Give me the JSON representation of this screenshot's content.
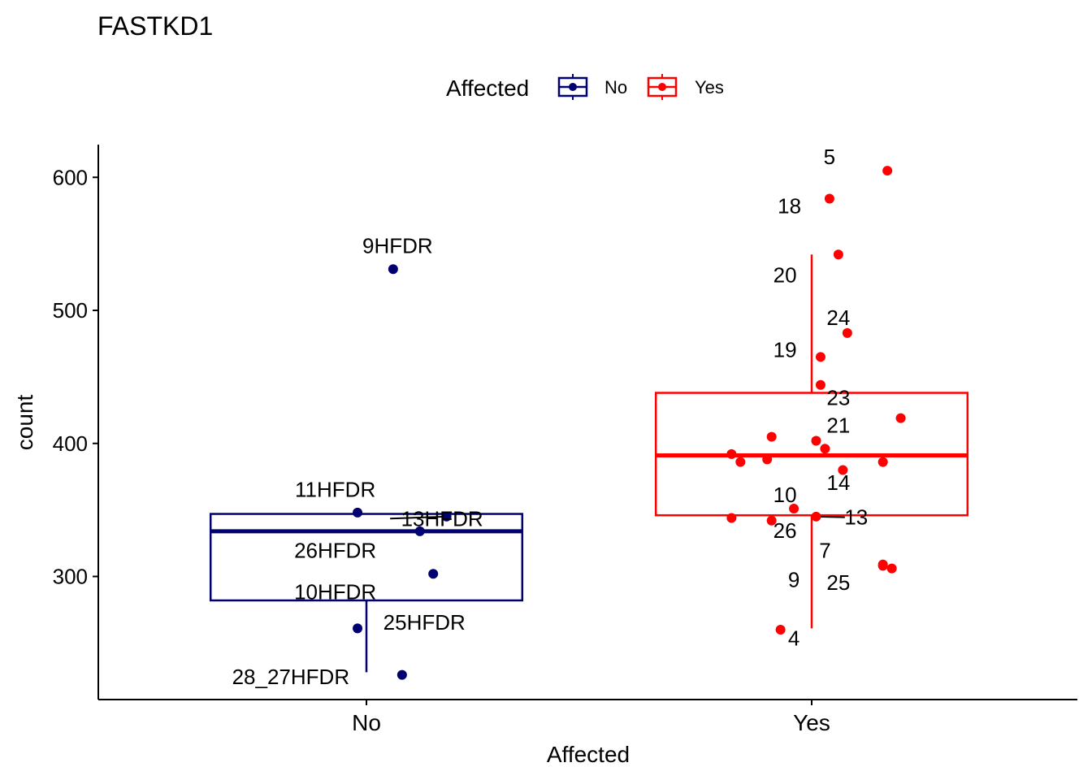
{
  "chart_data": {
    "type": "boxplot",
    "title": "FASTKD1",
    "xlabel": "Affected",
    "ylabel": "count",
    "ylim": [
      210,
      625
    ],
    "yticks": [
      300,
      400,
      500,
      600
    ],
    "categories": [
      "No",
      "Yes"
    ],
    "legend": {
      "title": "Affected",
      "position": "top",
      "entries": [
        "No",
        "Yes"
      ]
    },
    "colors": {
      "No": "#000070",
      "Yes": "#ff0000",
      "axis": "#000000",
      "leader": "#000000"
    },
    "boxes": [
      {
        "group": "No",
        "q1": 282,
        "median": 334,
        "q3": 347,
        "whisker_low": 228,
        "whisker_high": 347
      },
      {
        "group": "Yes",
        "q1": 346,
        "median": 391,
        "q3": 438,
        "whisker_low": 261,
        "whisker_high": 542
      }
    ],
    "points": [
      {
        "group": "No",
        "label": "9HFDR",
        "y": 531,
        "jitter": 0.06,
        "lx": 0.07,
        "ly": 543,
        "anchor": "middle"
      },
      {
        "group": "No",
        "label": "11HFDR",
        "y": 348,
        "jitter": -0.02,
        "lx": -0.07,
        "ly": 360,
        "anchor": "middle"
      },
      {
        "group": "No",
        "label": "13HFDR",
        "y": 345,
        "jitter": 0.18,
        "lx": 0.17,
        "ly": 338,
        "anchor": "middle",
        "leader": true
      },
      {
        "group": "No",
        "label": "26HFDR",
        "y": 334,
        "jitter": 0.12,
        "lx": -0.07,
        "ly": 314,
        "anchor": "middle"
      },
      {
        "group": "No",
        "label": "10HFDR",
        "y": 302,
        "jitter": 0.15,
        "lx": -0.07,
        "ly": 283,
        "anchor": "middle"
      },
      {
        "group": "No",
        "label": "25HFDR",
        "y": 261,
        "jitter": -0.02,
        "lx": 0.13,
        "ly": 260,
        "anchor": "middle"
      },
      {
        "group": "No",
        "label": "28_27HFDR",
        "y": 226,
        "jitter": 0.08,
        "lx": -0.17,
        "ly": 219,
        "anchor": "middle"
      },
      {
        "group": "Yes",
        "label": "5",
        "y": 605,
        "jitter": 0.17,
        "lx": 0.04,
        "ly": 610,
        "anchor": "middle"
      },
      {
        "group": "Yes",
        "label": "18",
        "y": 584,
        "jitter": 0.04,
        "lx": -0.05,
        "ly": 573,
        "anchor": "middle"
      },
      {
        "group": "Yes",
        "label": "20",
        "y": 542,
        "jitter": 0.06,
        "lx": -0.06,
        "ly": 521,
        "anchor": "middle"
      },
      {
        "group": "Yes",
        "label": "24",
        "y": 483,
        "jitter": 0.08,
        "lx": 0.06,
        "ly": 489,
        "anchor": "middle"
      },
      {
        "group": "Yes",
        "label": "19",
        "y": 465,
        "jitter": 0.02,
        "lx": -0.06,
        "ly": 465,
        "anchor": "middle"
      },
      {
        "group": "Yes",
        "label": "23",
        "y": 444,
        "jitter": 0.02,
        "lx": 0.06,
        "ly": 429,
        "anchor": "middle"
      },
      {
        "group": "Yes",
        "label": "21",
        "y": 402,
        "jitter": 0.01,
        "lx": 0.06,
        "ly": 408,
        "anchor": "middle"
      },
      {
        "group": "Yes",
        "label": "14",
        "y": 380,
        "jitter": 0.07,
        "lx": 0.06,
        "ly": 365,
        "anchor": "middle"
      },
      {
        "group": "Yes",
        "label": "10",
        "y": 351,
        "jitter": -0.04,
        "lx": -0.06,
        "ly": 356,
        "anchor": "middle"
      },
      {
        "group": "Yes",
        "label": "13",
        "y": 345,
        "jitter": 0.01,
        "lx": 0.1,
        "ly": 339,
        "anchor": "middle",
        "leader": true
      },
      {
        "group": "Yes",
        "label": "26",
        "y": 342,
        "jitter": -0.09,
        "lx": -0.06,
        "ly": 329,
        "anchor": "middle"
      },
      {
        "group": "Yes",
        "label": "7",
        "y": 309,
        "jitter": 0.16,
        "lx": 0.03,
        "ly": 314,
        "anchor": "middle"
      },
      {
        "group": "Yes",
        "label": "9",
        "y": 308,
        "jitter": 0.16,
        "lx": -0.04,
        "ly": 292,
        "anchor": "middle"
      },
      {
        "group": "Yes",
        "label": "25",
        "y": 306,
        "jitter": 0.18,
        "lx": 0.06,
        "ly": 290,
        "anchor": "middle"
      },
      {
        "group": "Yes",
        "label": "4",
        "y": 260,
        "jitter": -0.07,
        "lx": -0.04,
        "ly": 248,
        "anchor": "middle"
      },
      {
        "group": "Yes",
        "label": "",
        "y": 419,
        "jitter": 0.2
      },
      {
        "group": "Yes",
        "label": "",
        "y": 405,
        "jitter": -0.09
      },
      {
        "group": "Yes",
        "label": "",
        "y": 396,
        "jitter": 0.03
      },
      {
        "group": "Yes",
        "label": "",
        "y": 392,
        "jitter": -0.18
      },
      {
        "group": "Yes",
        "label": "",
        "y": 388,
        "jitter": -0.1
      },
      {
        "group": "Yes",
        "label": "",
        "y": 386,
        "jitter": -0.16
      },
      {
        "group": "Yes",
        "label": "",
        "y": 386,
        "jitter": 0.16
      },
      {
        "group": "Yes",
        "label": "",
        "y": 344,
        "jitter": -0.18
      }
    ]
  }
}
